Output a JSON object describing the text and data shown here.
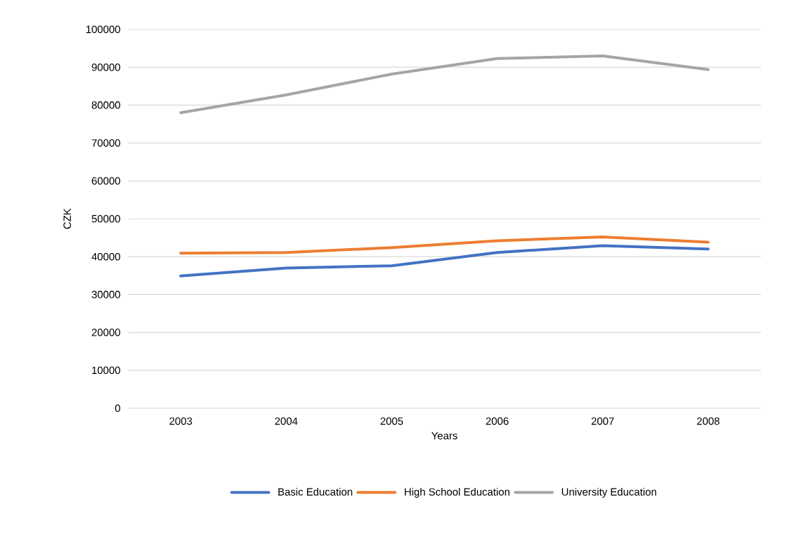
{
  "chart_data": {
    "type": "line",
    "xlabel": "Years",
    "ylabel": "CZK",
    "categories": [
      "2003",
      "2004",
      "2005",
      "2006",
      "2007",
      "2008"
    ],
    "series": [
      {
        "name": "Basic Education",
        "color": "#4472c4",
        "values": [
          34900,
          37000,
          37600,
          41100,
          42900,
          42000
        ]
      },
      {
        "name": "High School Education",
        "color": "#ed7d31",
        "values": [
          40900,
          41100,
          42400,
          44200,
          45200,
          43800
        ]
      },
      {
        "name": "University Education",
        "color": "#a5a5a5",
        "values": [
          78000,
          82700,
          88200,
          92300,
          93000,
          89400
        ]
      }
    ],
    "ylim": [
      0,
      100000
    ],
    "yticks": [
      0,
      10000,
      20000,
      30000,
      40000,
      50000,
      60000,
      70000,
      80000,
      90000,
      100000
    ],
    "grid": "y",
    "legend": "bottom",
    "marker": "none",
    "line_style": "solid"
  }
}
